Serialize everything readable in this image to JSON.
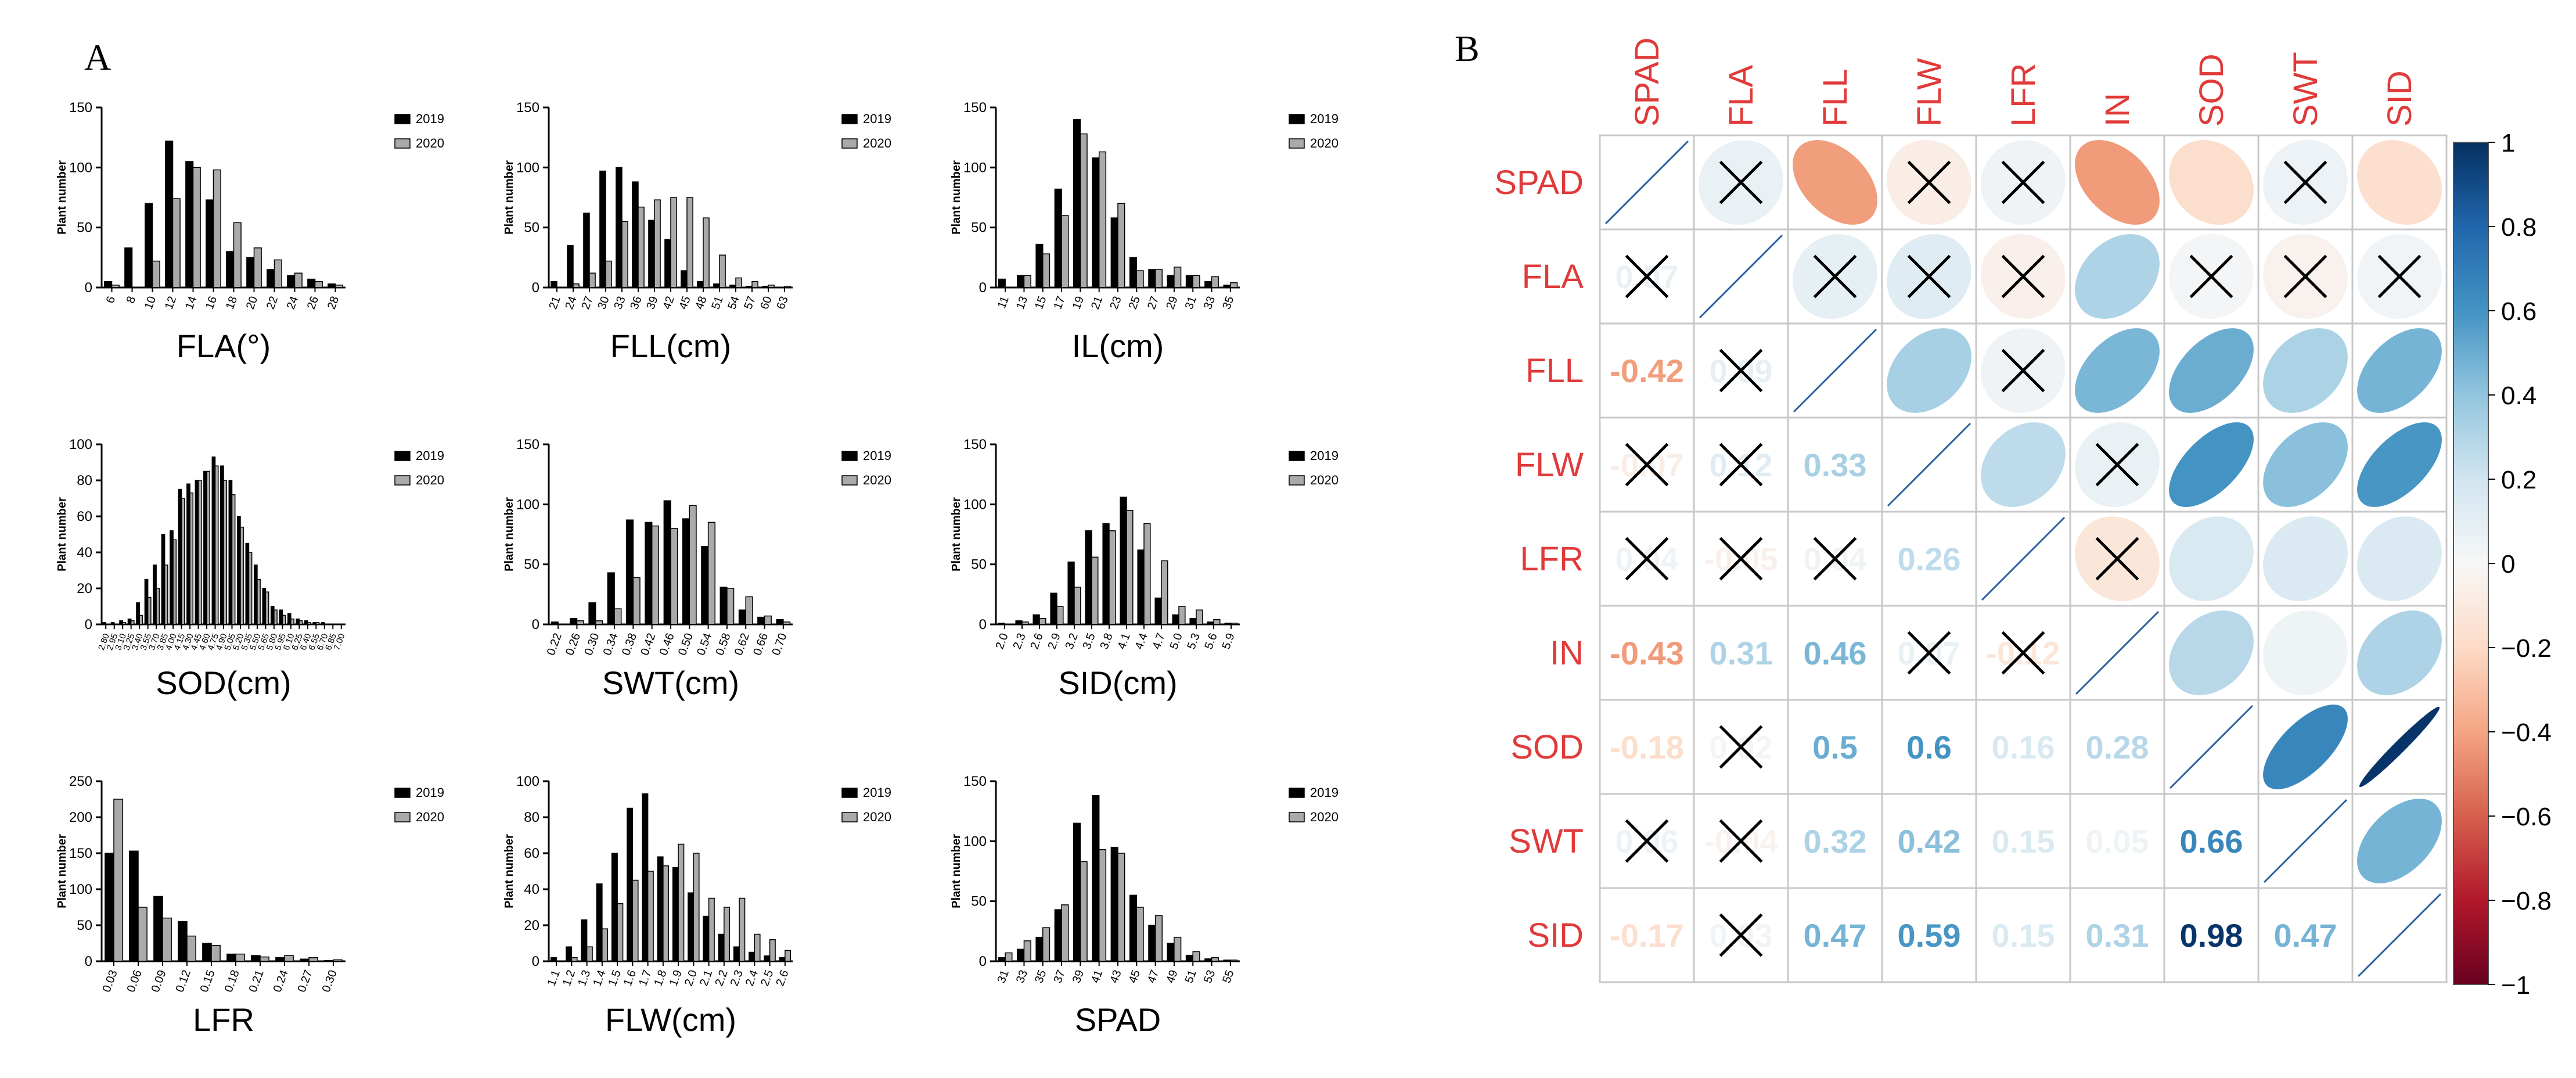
{
  "panel_a_label": "A",
  "panel_b_label": "B",
  "histogram_y_label": "Plant number",
  "colors": {
    "year_2019": "#000000",
    "year_2020": "#aaaaaa",
    "corr_label": "#e03a3a",
    "grid": "#c8c8c8",
    "axis": "#000000"
  },
  "chart_data": [
    {
      "type": "bar",
      "id": "hist-fla",
      "title": "FLA(°)",
      "categories": [
        "6",
        "8",
        "10",
        "12",
        "14",
        "16",
        "18",
        "20",
        "22",
        "24",
        "26",
        "28"
      ],
      "series": [
        {
          "name": "2019",
          "values": [
            5,
            33,
            70,
            122,
            105,
            73,
            30,
            25,
            15,
            10,
            7,
            3
          ]
        },
        {
          "name": "2020",
          "values": [
            2,
            0,
            22,
            74,
            100,
            98,
            54,
            33,
            23,
            12,
            5,
            2
          ]
        }
      ],
      "ylim": [
        0,
        150
      ],
      "yticks": [
        0,
        50,
        100,
        150
      ],
      "xlabel": "",
      "ylabel": "Plant number"
    },
    {
      "type": "bar",
      "id": "hist-fll",
      "title": "FLL(cm)",
      "categories": [
        "21",
        "24",
        "27",
        "30",
        "33",
        "36",
        "39",
        "42",
        "45",
        "48",
        "51",
        "54",
        "57",
        "60",
        "63"
      ],
      "series": [
        {
          "name": "2019",
          "values": [
            5,
            35,
            62,
            97,
            100,
            88,
            56,
            40,
            14,
            5,
            3,
            2,
            1,
            1,
            0
          ]
        },
        {
          "name": "2020",
          "values": [
            0,
            3,
            12,
            22,
            55,
            67,
            73,
            75,
            75,
            58,
            27,
            8,
            5,
            2,
            1
          ]
        }
      ],
      "ylim": [
        0,
        150
      ],
      "yticks": [
        0,
        50,
        100,
        150
      ],
      "xlabel": "",
      "ylabel": "Plant number"
    },
    {
      "type": "bar",
      "id": "hist-il",
      "title": "IL(cm)",
      "categories": [
        "11",
        "13",
        "15",
        "17",
        "19",
        "21",
        "23",
        "25",
        "27",
        "29",
        "31",
        "33",
        "35"
      ],
      "series": [
        {
          "name": "2019",
          "values": [
            7,
            10,
            36,
            82,
            140,
            108,
            58,
            25,
            15,
            10,
            10,
            5,
            2
          ]
        },
        {
          "name": "2020",
          "values": [
            0,
            10,
            28,
            60,
            128,
            113,
            70,
            14,
            15,
            17,
            10,
            9,
            4
          ]
        }
      ],
      "ylim": [
        0,
        150
      ],
      "yticks": [
        0,
        50,
        100,
        150
      ],
      "xlabel": "",
      "ylabel": "Plant number"
    },
    {
      "type": "bar",
      "id": "hist-sod",
      "title": "SOD(cm)",
      "categories": [
        "2.80",
        "2.95",
        "3.10",
        "3.25",
        "3.40",
        "3.55",
        "3.70",
        "3.85",
        "4.00",
        "4.15",
        "4.30",
        "4.45",
        "4.60",
        "4.75",
        "4.90",
        "5.05",
        "5.20",
        "5.35",
        "5.50",
        "5.65",
        "5.80",
        "5.95",
        "6.10",
        "6.25",
        "6.40",
        "6.55",
        "6.70",
        "6.85",
        "7.00"
      ],
      "series": [
        {
          "name": "2019",
          "values": [
            1,
            1,
            2,
            3,
            12,
            25,
            33,
            50,
            52,
            75,
            78,
            80,
            85,
            93,
            88,
            80,
            60,
            45,
            33,
            20,
            10,
            8,
            6,
            3,
            2,
            1,
            1,
            0,
            0
          ]
        },
        {
          "name": "2020",
          "values": [
            0,
            0,
            1,
            2,
            5,
            15,
            20,
            33,
            47,
            70,
            73,
            80,
            85,
            88,
            80,
            72,
            54,
            40,
            25,
            18,
            8,
            5,
            3,
            2,
            1,
            1,
            0,
            0,
            0
          ]
        }
      ],
      "ylim": [
        0,
        100
      ],
      "yticks": [
        0,
        20,
        40,
        60,
        80,
        100
      ],
      "xlabel": "",
      "ylabel": "Plant number"
    },
    {
      "type": "bar",
      "id": "hist-swt",
      "title": "SWT(cm)",
      "categories": [
        "0.22",
        "0.26",
        "0.30",
        "0.34",
        "0.38",
        "0.42",
        "0.46",
        "0.50",
        "0.54",
        "0.58",
        "0.62",
        "0.66",
        "0.70"
      ],
      "series": [
        {
          "name": "2019",
          "values": [
            2,
            5,
            18,
            43,
            87,
            85,
            103,
            88,
            65,
            31,
            12,
            6,
            4
          ]
        },
        {
          "name": "2020",
          "values": [
            0,
            3,
            3,
            13,
            39,
            82,
            80,
            99,
            85,
            30,
            23,
            7,
            2
          ]
        }
      ],
      "ylim": [
        0,
        150
      ],
      "yticks": [
        0,
        50,
        100,
        150
      ],
      "xlabel": "",
      "ylabel": "Plant number"
    },
    {
      "type": "bar",
      "id": "hist-sid",
      "title": "SID(cm)",
      "categories": [
        "2.0",
        "2.3",
        "2.6",
        "2.9",
        "3.2",
        "3.5",
        "3.8",
        "4.1",
        "4.4",
        "4.7",
        "5.0",
        "5.3",
        "5.6",
        "5.9"
      ],
      "series": [
        {
          "name": "2019",
          "values": [
            1,
            3,
            8,
            26,
            52,
            78,
            84,
            106,
            62,
            22,
            8,
            5,
            2,
            1
          ]
        },
        {
          "name": "2020",
          "values": [
            0,
            2,
            5,
            15,
            31,
            56,
            78,
            95,
            84,
            53,
            15,
            12,
            4,
            1
          ]
        }
      ],
      "ylim": [
        0,
        150
      ],
      "yticks": [
        0,
        50,
        100,
        150
      ],
      "xlabel": "",
      "ylabel": "Plant number"
    },
    {
      "type": "bar",
      "id": "hist-lfr",
      "title": "LFR",
      "categories": [
        "0.03",
        "0.06",
        "0.09",
        "0.12",
        "0.15",
        "0.18",
        "0.21",
        "0.24",
        "0.27",
        "0.30"
      ],
      "series": [
        {
          "name": "2019",
          "values": [
            150,
            153,
            90,
            55,
            25,
            10,
            8,
            5,
            3,
            1
          ]
        },
        {
          "name": "2020",
          "values": [
            225,
            75,
            60,
            35,
            22,
            10,
            6,
            8,
            5,
            2
          ]
        }
      ],
      "ylim": [
        0,
        250
      ],
      "yticks": [
        0,
        50,
        100,
        150,
        200,
        250
      ],
      "xlabel": "",
      "ylabel": "Plant number"
    },
    {
      "type": "bar",
      "id": "hist-flw",
      "title": "FLW(cm)",
      "categories": [
        "1.1",
        "1.2",
        "1.3",
        "1.4",
        "1.5",
        "1.6",
        "1.7",
        "1.8",
        "1.9",
        "2.0",
        "2.1",
        "2.2",
        "2.3",
        "2.4",
        "2.5",
        "2.6"
      ],
      "series": [
        {
          "name": "2019",
          "values": [
            2,
            8,
            23,
            43,
            60,
            85,
            93,
            58,
            52,
            38,
            25,
            15,
            8,
            5,
            3,
            2
          ]
        },
        {
          "name": "2020",
          "values": [
            0,
            2,
            8,
            18,
            32,
            45,
            50,
            53,
            65,
            60,
            35,
            30,
            35,
            15,
            12,
            6
          ]
        }
      ],
      "ylim": [
        0,
        100
      ],
      "yticks": [
        0,
        20,
        40,
        60,
        80,
        100
      ],
      "xlabel": "",
      "ylabel": "Plant number"
    },
    {
      "type": "bar",
      "id": "hist-spad",
      "title": "SPAD",
      "categories": [
        "31",
        "33",
        "35",
        "37",
        "39",
        "41",
        "43",
        "45",
        "47",
        "49",
        "51",
        "53",
        "55"
      ],
      "series": [
        {
          "name": "2019",
          "values": [
            3,
            10,
            20,
            43,
            115,
            138,
            95,
            55,
            30,
            15,
            5,
            2,
            1
          ]
        },
        {
          "name": "2020",
          "values": [
            7,
            17,
            28,
            47,
            83,
            93,
            90,
            45,
            38,
            20,
            8,
            3,
            1
          ]
        }
      ],
      "ylim": [
        0,
        150
      ],
      "yticks": [
        0,
        50,
        100,
        150
      ],
      "xlabel": "",
      "ylabel": "Plant number"
    },
    {
      "type": "heatmap",
      "id": "corr-matrix",
      "title": "",
      "variables": [
        "SPAD",
        "FLA",
        "FLL",
        "FLW",
        "LFR",
        "IN",
        "SOD",
        "SWT",
        "SID"
      ],
      "matrix": [
        [
          1.0,
          0.07,
          -0.42,
          -0.07,
          0.04,
          -0.43,
          -0.18,
          0.06,
          -0.17
        ],
        [
          0.07,
          1.0,
          0.09,
          0.12,
          -0.05,
          0.31,
          0.02,
          -0.04,
          0.03
        ],
        [
          -0.42,
          0.09,
          1.0,
          0.33,
          0.04,
          0.46,
          0.5,
          0.32,
          0.47
        ],
        [
          -0.07,
          0.12,
          0.33,
          1.0,
          0.26,
          0.07,
          0.6,
          0.42,
          0.59
        ],
        [
          0.04,
          -0.05,
          0.04,
          0.26,
          1.0,
          -0.12,
          0.16,
          0.15,
          0.15
        ],
        [
          -0.43,
          0.31,
          0.46,
          0.07,
          -0.12,
          1.0,
          0.28,
          0.05,
          0.31
        ],
        [
          -0.18,
          0.02,
          0.5,
          0.6,
          0.16,
          0.28,
          1.0,
          0.66,
          0.98
        ],
        [
          0.06,
          -0.04,
          0.32,
          0.42,
          0.15,
          0.05,
          0.66,
          1.0,
          0.47
        ],
        [
          -0.17,
          0.03,
          0.47,
          0.59,
          0.15,
          0.31,
          0.98,
          0.47,
          1.0
        ]
      ],
      "nonsignificant": [
        [
          0,
          1
        ],
        [
          0,
          3
        ],
        [
          0,
          4
        ],
        [
          0,
          7
        ],
        [
          1,
          2
        ],
        [
          1,
          3
        ],
        [
          1,
          4
        ],
        [
          1,
          6
        ],
        [
          1,
          7
        ],
        [
          1,
          8
        ],
        [
          2,
          4
        ],
        [
          3,
          5
        ],
        [
          4,
          5
        ]
      ],
      "colorbar_ticks": [
        "1",
        "0.8",
        "0.6",
        "0.4",
        "0.2",
        "0",
        "−0.2",
        "−0.4",
        "−0.6",
        "−0.8",
        "−1"
      ],
      "colorbar_range": [
        -1,
        1
      ]
    }
  ]
}
